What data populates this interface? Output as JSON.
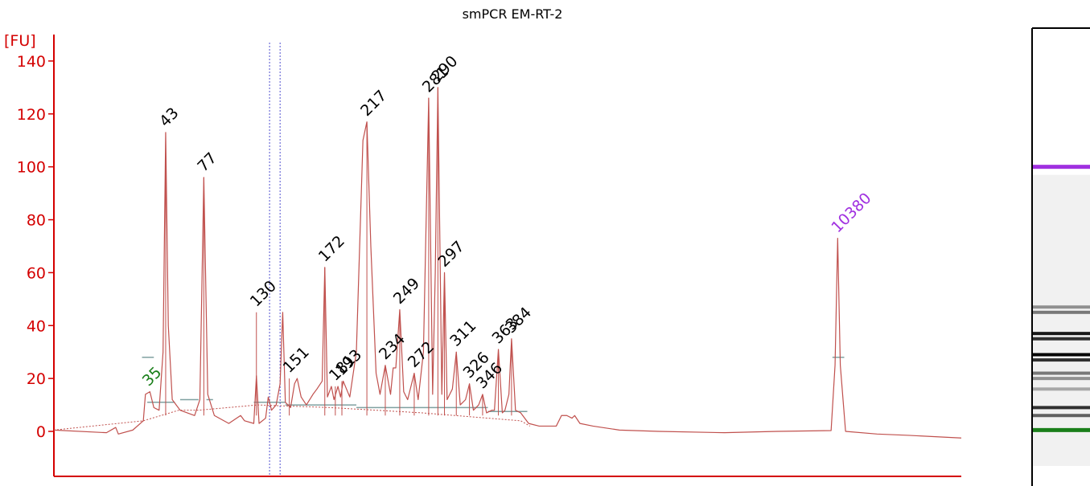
{
  "chart_data": {
    "type": "line",
    "title": "smPCR EM-RT-2",
    "ylabel": "[FU]",
    "xlabel": "",
    "ylim": [
      -17,
      150
    ],
    "yticks": [
      0,
      20,
      40,
      60,
      80,
      100,
      120,
      140
    ],
    "x_unit": "time (s)",
    "xlim": [
      17,
      86
    ],
    "grid": false,
    "legend": "none",
    "colors": {
      "axis": "#d40000",
      "trace": "#c0504d",
      "label": "#000000",
      "lower_marker": "#1a7f1a",
      "upper_marker": "#a030e0",
      "threshold": "#7fa0a0",
      "marker_line": "#5050d0"
    },
    "series": [
      {
        "values": [
          [
            17,
            0.5
          ],
          [
            21,
            -0.5
          ],
          [
            21.7,
            1.5
          ],
          [
            21.9,
            -1
          ],
          [
            23,
            0.5
          ],
          [
            23.8,
            4
          ],
          [
            23.96,
            14
          ],
          [
            24.3,
            15
          ],
          [
            24.6,
            9
          ],
          [
            25.0,
            8
          ],
          [
            25.3,
            30
          ],
          [
            25.5,
            113
          ],
          [
            25.7,
            40
          ],
          [
            26.0,
            12
          ],
          [
            26.6,
            8
          ],
          [
            27.7,
            6
          ],
          [
            28.1,
            12
          ],
          [
            28.4,
            96
          ],
          [
            28.7,
            14
          ],
          [
            29.2,
            6
          ],
          [
            30.3,
            3
          ],
          [
            30.9,
            5
          ],
          [
            31.2,
            6
          ],
          [
            31.5,
            4
          ],
          [
            32.2,
            3
          ],
          [
            32.4,
            21
          ],
          [
            32.6,
            3
          ],
          [
            33.1,
            5
          ],
          [
            33.3,
            13
          ],
          [
            33.55,
            8
          ],
          [
            33.9,
            10
          ],
          [
            34.2,
            18
          ],
          [
            34.4,
            45
          ],
          [
            34.6,
            11
          ],
          [
            35.0,
            9
          ],
          [
            35.3,
            18
          ],
          [
            35.5,
            20
          ],
          [
            35.8,
            13
          ],
          [
            36.2,
            10
          ],
          [
            36.7,
            14
          ],
          [
            37.0,
            16
          ],
          [
            37.4,
            19
          ],
          [
            37.6,
            62
          ],
          [
            37.8,
            13
          ],
          [
            38.1,
            17
          ],
          [
            38.3,
            12
          ],
          [
            38.6,
            17
          ],
          [
            38.8,
            13
          ],
          [
            39.0,
            19
          ],
          [
            39.5,
            13
          ],
          [
            40.0,
            30
          ],
          [
            40.5,
            110
          ],
          [
            40.8,
            117
          ],
          [
            41.1,
            70
          ],
          [
            41.5,
            22
          ],
          [
            41.8,
            14
          ],
          [
            42.2,
            25
          ],
          [
            42.6,
            14
          ],
          [
            42.8,
            24
          ],
          [
            43.0,
            24
          ],
          [
            43.3,
            46
          ],
          [
            43.6,
            15
          ],
          [
            43.9,
            12
          ],
          [
            44.2,
            18
          ],
          [
            44.4,
            22
          ],
          [
            44.7,
            12
          ],
          [
            45.1,
            30
          ],
          [
            45.5,
            126
          ],
          [
            45.8,
            14
          ],
          [
            46.0,
            60
          ],
          [
            46.2,
            130
          ],
          [
            46.5,
            14
          ],
          [
            46.7,
            60
          ],
          [
            46.9,
            12
          ],
          [
            47.3,
            16
          ],
          [
            47.6,
            30
          ],
          [
            47.9,
            10
          ],
          [
            48.3,
            12
          ],
          [
            48.6,
            18
          ],
          [
            48.9,
            8
          ],
          [
            49.3,
            10
          ],
          [
            49.6,
            14
          ],
          [
            49.9,
            7
          ],
          [
            50.3,
            8
          ],
          [
            50.5,
            8
          ],
          [
            50.8,
            31
          ],
          [
            51.1,
            7
          ],
          [
            51.3,
            8
          ],
          [
            51.6,
            14
          ],
          [
            51.8,
            35
          ],
          [
            52.1,
            8
          ],
          [
            52.5,
            7
          ],
          [
            53.1,
            3
          ],
          [
            53.9,
            2
          ],
          [
            55.2,
            2
          ],
          [
            55.6,
            6
          ],
          [
            56.0,
            6
          ],
          [
            56.4,
            5
          ],
          [
            56.6,
            6
          ],
          [
            57.0,
            3
          ],
          [
            58.0,
            2
          ],
          [
            60.0,
            0.5
          ],
          [
            63.0,
            0
          ],
          [
            68.0,
            -0.5
          ],
          [
            72.0,
            0
          ],
          [
            76.1,
            0.3
          ],
          [
            76.4,
            25
          ],
          [
            76.6,
            73
          ],
          [
            76.8,
            25
          ],
          [
            77.2,
            0
          ],
          [
            79.6,
            -1
          ],
          [
            82.0,
            -1.5
          ],
          [
            86.0,
            -2.5
          ]
        ]
      }
    ],
    "peaks": [
      {
        "label": "35",
        "x": 24.2,
        "y": 15,
        "kind": "lower_marker"
      },
      {
        "label": "43",
        "x": 25.5,
        "y": 113,
        "kind": "sample"
      },
      {
        "label": "77",
        "x": 28.4,
        "y": 96,
        "kind": "sample"
      },
      {
        "label": "130",
        "x": 32.4,
        "y": 45,
        "kind": "sample"
      },
      {
        "label": "151",
        "x": 34.9,
        "y": 20,
        "kind": "sample"
      },
      {
        "label": "172",
        "x": 37.6,
        "y": 62,
        "kind": "sample"
      },
      {
        "label": "181",
        "x": 38.4,
        "y": 17,
        "kind": "sample"
      },
      {
        "label": "193",
        "x": 38.9,
        "y": 19,
        "kind": "sample"
      },
      {
        "label": "217",
        "x": 40.8,
        "y": 117,
        "kind": "sample"
      },
      {
        "label": "234",
        "x": 42.2,
        "y": 25,
        "kind": "sample"
      },
      {
        "label": "249",
        "x": 43.3,
        "y": 46,
        "kind": "sample"
      },
      {
        "label": "272",
        "x": 44.4,
        "y": 22,
        "kind": "sample"
      },
      {
        "label": "281",
        "x": 45.5,
        "y": 126,
        "kind": "sample"
      },
      {
        "label": "290",
        "x": 46.2,
        "y": 130,
        "kind": "sample"
      },
      {
        "label": "297",
        "x": 46.7,
        "y": 60,
        "kind": "sample"
      },
      {
        "label": "311",
        "x": 47.6,
        "y": 30,
        "kind": "sample"
      },
      {
        "label": "326",
        "x": 48.6,
        "y": 18,
        "kind": "sample"
      },
      {
        "label": "346",
        "x": 49.6,
        "y": 14,
        "kind": "sample"
      },
      {
        "label": "363",
        "x": 50.8,
        "y": 31,
        "kind": "sample"
      },
      {
        "label": "384",
        "x": 51.8,
        "y": 35,
        "kind": "sample"
      },
      {
        "label": "10380",
        "x": 76.6,
        "y": 73,
        "kind": "upper_marker"
      }
    ],
    "gel_bands": [
      {
        "y": 100,
        "color": "#a030e0",
        "intensity": 1
      },
      {
        "y": 47,
        "color": "#000",
        "intensity": 0.4
      },
      {
        "y": 45,
        "color": "#000",
        "intensity": 0.5
      },
      {
        "y": 37,
        "color": "#000",
        "intensity": 0.9
      },
      {
        "y": 35,
        "color": "#000",
        "intensity": 0.8
      },
      {
        "y": 29,
        "color": "#000",
        "intensity": 1
      },
      {
        "y": 27,
        "color": "#000",
        "intensity": 0.8
      },
      {
        "y": 22,
        "color": "#000",
        "intensity": 0.5
      },
      {
        "y": 20,
        "color": "#000",
        "intensity": 0.4
      },
      {
        "y": 16,
        "color": "#000",
        "intensity": 0.3
      },
      {
        "y": 9,
        "color": "#000",
        "intensity": 0.8
      },
      {
        "y": 6,
        "color": "#000",
        "intensity": 0.6
      },
      {
        "y": 0.5,
        "color": "#1a7f1a",
        "intensity": 1
      }
    ]
  }
}
